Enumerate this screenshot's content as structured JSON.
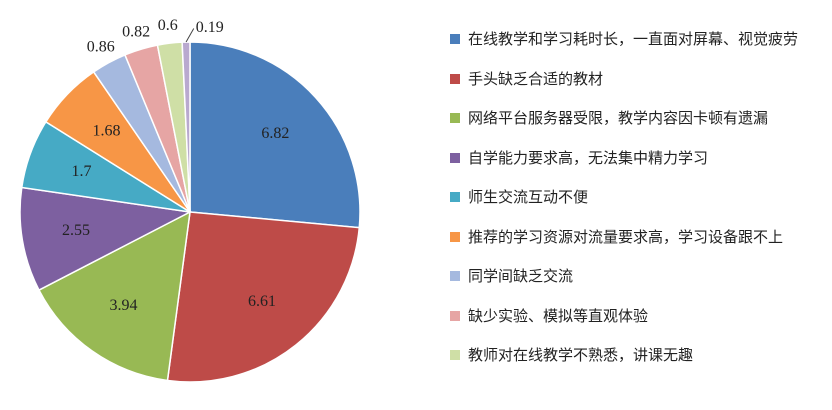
{
  "chart_data": {
    "type": "pie",
    "categories": [
      "在线教学和学习耗时长，一直面对屏幕、视觉疲劳",
      "手头缺乏合适的教材",
      "网络平台服务器受限，教学内容因卡顿有遗漏",
      "自学能力要求高，无法集中精力学习",
      "师生交流互动不便",
      "推荐的学习资源对流量要求高，学习设备跟不上",
      "同学间缺乏交流",
      "缺少实验、模拟等直观体验",
      "教师对在线教学不熟悉，讲课无趣",
      null
    ],
    "values": [
      6.82,
      6.61,
      3.94,
      2.55,
      1.7,
      1.68,
      0.86,
      0.82,
      0.6,
      0.19
    ],
    "colors": [
      "#4a7ebb",
      "#be4b48",
      "#98b954",
      "#7d60a0",
      "#46aac5",
      "#f79646",
      "#a5b9df",
      "#e6a5a4",
      "#cfdfa6",
      "#b9a9cf"
    ],
    "legend": "right"
  }
}
